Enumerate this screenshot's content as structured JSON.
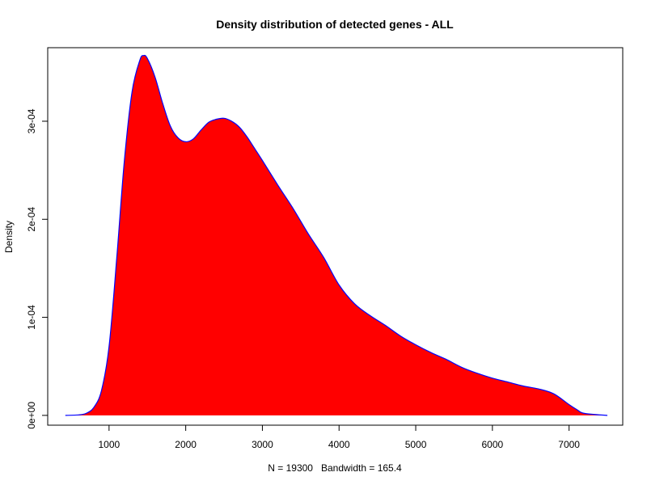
{
  "chart_data": {
    "type": "area",
    "title": "Density distribution of detected genes - ALL",
    "xlabel": "N = 19300   Bandwidth = 165.4",
    "ylabel": "Density",
    "xlim": [
      200,
      7700
    ],
    "ylim": [
      -1e-05,
      0.000375
    ],
    "x_ticks": [
      1000,
      2000,
      3000,
      4000,
      5000,
      6000,
      7000
    ],
    "x_tick_labels": [
      "1000",
      "2000",
      "3000",
      "4000",
      "5000",
      "6000",
      "7000"
    ],
    "y_ticks": [
      0,
      0.0001,
      0.0002,
      0.0003
    ],
    "y_tick_labels": [
      "0e+00",
      "1e-04",
      "2e-04",
      "3e-04"
    ],
    "grid": false,
    "legend": "none",
    "series": [
      {
        "x": [
          430,
          600,
          700,
          800,
          900,
          1000,
          1100,
          1200,
          1300,
          1400,
          1450,
          1500,
          1600,
          1700,
          1800,
          1900,
          2000,
          2100,
          2200,
          2300,
          2400,
          2500,
          2600,
          2700,
          2800,
          2900,
          3000,
          3200,
          3400,
          3600,
          3800,
          4000,
          4200,
          4400,
          4600,
          4800,
          5000,
          5200,
          5400,
          5600,
          5800,
          6000,
          6200,
          6400,
          6600,
          6800,
          7000,
          7100,
          7200,
          7500
        ],
        "y": [
          0,
          5e-07,
          2e-06,
          8e-06,
          2.5e-05,
          7e-05,
          0.00016,
          0.00026,
          0.00033,
          0.000362,
          0.000367,
          0.000364,
          0.000345,
          0.000318,
          0.000295,
          0.000283,
          0.000279,
          0.000282,
          0.000291,
          0.000299,
          0.000302,
          0.000303,
          0.0003,
          0.000294,
          0.000284,
          0.000272,
          0.00026,
          0.000235,
          0.000211,
          0.000185,
          0.000161,
          0.000133,
          0.000114,
          0.000102,
          9.2e-05,
          8.1e-05,
          7.2e-05,
          6.4e-05,
          5.7e-05,
          4.9e-05,
          4.3e-05,
          3.8e-05,
          3.4e-05,
          3e-05,
          2.7e-05,
          2.2e-05,
          1.1e-05,
          6e-06,
          2e-06,
          0
        ]
      }
    ],
    "fill_color": "#ff0000",
    "line_color": "#0000ff"
  }
}
